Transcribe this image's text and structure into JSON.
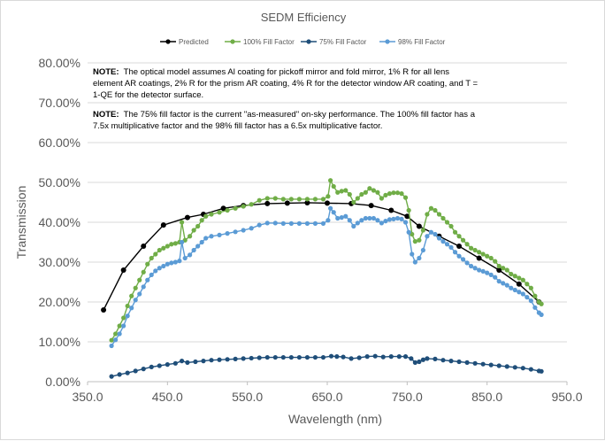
{
  "chart_data": {
    "type": "line",
    "title": "SEDM Efficiency",
    "xlabel": "Wavelength (nm)",
    "ylabel": "Transmission",
    "xlim": [
      350,
      950
    ],
    "ylim": [
      0,
      0.8
    ],
    "x_ticks": [
      "350.0",
      "450.0",
      "550.0",
      "650.0",
      "750.0",
      "850.0",
      "950.0"
    ],
    "y_ticks": [
      "0.00%",
      "10.00%",
      "20.00%",
      "30.00%",
      "40.00%",
      "50.00%",
      "60.00%",
      "70.00%",
      "80.00%"
    ],
    "legend_position": "top",
    "notes": [
      {
        "label": "NOTE:",
        "text": "The optical model assumes Al coating for pickoff mirror and fold mirror, 1% R for all lens element AR coatings, 2% R for the prism AR coating, 4% R for the detector window AR coating, and T = 1-QE for the detector surface."
      },
      {
        "label": "NOTE:",
        "text": "The 75% fill factor is the current \"as-measured\" on-sky performance.  The 100% fill factor has a 7.5x multiplicative factor and the 98% fill factor has a 6.5x multiplicative factor."
      }
    ],
    "series": [
      {
        "name": "Predicted",
        "color": "#000000",
        "marker": "#000000",
        "stride": 1,
        "points": [
          [
            370,
            0.18
          ],
          [
            395,
            0.28
          ],
          [
            420,
            0.34
          ],
          [
            445,
            0.393
          ],
          [
            475,
            0.412
          ],
          [
            495,
            0.42
          ],
          [
            520,
            0.435
          ],
          [
            545,
            0.442
          ],
          [
            575,
            0.447
          ],
          [
            600,
            0.448
          ],
          [
            625,
            0.449
          ],
          [
            650,
            0.448
          ],
          [
            680,
            0.447
          ],
          [
            705,
            0.442
          ],
          [
            730,
            0.43
          ],
          [
            750,
            0.415
          ],
          [
            765,
            0.39
          ],
          [
            790,
            0.365
          ],
          [
            815,
            0.34
          ],
          [
            840,
            0.31
          ],
          [
            865,
            0.28
          ],
          [
            890,
            0.245
          ],
          [
            915,
            0.2
          ]
        ]
      },
      {
        "name": "100% Fill Factor",
        "color": "#70ad47",
        "marker": "#70ad47",
        "stride": 1,
        "points": [
          [
            380,
            0.104
          ],
          [
            385,
            0.12
          ],
          [
            390,
            0.14
          ],
          [
            395,
            0.16
          ],
          [
            400,
            0.19
          ],
          [
            405,
            0.215
          ],
          [
            410,
            0.235
          ],
          [
            415,
            0.255
          ],
          [
            420,
            0.275
          ],
          [
            425,
            0.295
          ],
          [
            430,
            0.31
          ],
          [
            435,
            0.32
          ],
          [
            440,
            0.33
          ],
          [
            445,
            0.335
          ],
          [
            450,
            0.34
          ],
          [
            455,
            0.345
          ],
          [
            460,
            0.347
          ],
          [
            465,
            0.35
          ],
          [
            468,
            0.4
          ],
          [
            472,
            0.355
          ],
          [
            478,
            0.365
          ],
          [
            483,
            0.38
          ],
          [
            488,
            0.39
          ],
          [
            493,
            0.405
          ],
          [
            498,
            0.415
          ],
          [
            505,
            0.42
          ],
          [
            515,
            0.425
          ],
          [
            525,
            0.43
          ],
          [
            535,
            0.435
          ],
          [
            545,
            0.44
          ],
          [
            555,
            0.445
          ],
          [
            565,
            0.455
          ],
          [
            575,
            0.46
          ],
          [
            585,
            0.46
          ],
          [
            595,
            0.458
          ],
          [
            605,
            0.458
          ],
          [
            615,
            0.458
          ],
          [
            625,
            0.458
          ],
          [
            635,
            0.458
          ],
          [
            645,
            0.458
          ],
          [
            651,
            0.465
          ],
          [
            654,
            0.505
          ],
          [
            658,
            0.49
          ],
          [
            663,
            0.475
          ],
          [
            668,
            0.478
          ],
          [
            673,
            0.48
          ],
          [
            678,
            0.47
          ],
          [
            683,
            0.45
          ],
          [
            688,
            0.46
          ],
          [
            693,
            0.47
          ],
          [
            698,
            0.475
          ],
          [
            703,
            0.485
          ],
          [
            708,
            0.48
          ],
          [
            713,
            0.475
          ],
          [
            718,
            0.46
          ],
          [
            723,
            0.468
          ],
          [
            728,
            0.472
          ],
          [
            733,
            0.474
          ],
          [
            738,
            0.474
          ],
          [
            743,
            0.472
          ],
          [
            748,
            0.462
          ],
          [
            752,
            0.43
          ],
          [
            756,
            0.37
          ],
          [
            760,
            0.352
          ],
          [
            765,
            0.355
          ],
          [
            770,
            0.38
          ],
          [
            775,
            0.42
          ],
          [
            780,
            0.435
          ],
          [
            785,
            0.43
          ],
          [
            790,
            0.42
          ],
          [
            795,
            0.41
          ],
          [
            800,
            0.4
          ],
          [
            805,
            0.39
          ],
          [
            810,
            0.375
          ],
          [
            815,
            0.365
          ],
          [
            820,
            0.355
          ],
          [
            825,
            0.345
          ],
          [
            830,
            0.335
          ],
          [
            835,
            0.33
          ],
          [
            840,
            0.325
          ],
          [
            845,
            0.32
          ],
          [
            850,
            0.315
          ],
          [
            855,
            0.31
          ],
          [
            860,
            0.302
          ],
          [
            865,
            0.29
          ],
          [
            870,
            0.285
          ],
          [
            875,
            0.28
          ],
          [
            880,
            0.27
          ],
          [
            885,
            0.265
          ],
          [
            890,
            0.26
          ],
          [
            895,
            0.255
          ],
          [
            900,
            0.245
          ],
          [
            905,
            0.235
          ],
          [
            910,
            0.215
          ],
          [
            915,
            0.2
          ],
          [
            918,
            0.195
          ]
        ]
      },
      {
        "name": "75% Fill Factor",
        "color": "#1f4e79",
        "marker": "#1f4e79",
        "stride": 1,
        "points": [
          [
            380,
            0.013
          ],
          [
            390,
            0.018
          ],
          [
            400,
            0.022
          ],
          [
            410,
            0.027
          ],
          [
            420,
            0.032
          ],
          [
            430,
            0.037
          ],
          [
            440,
            0.04
          ],
          [
            450,
            0.043
          ],
          [
            460,
            0.046
          ],
          [
            468,
            0.052
          ],
          [
            475,
            0.048
          ],
          [
            485,
            0.05
          ],
          [
            495,
            0.052
          ],
          [
            505,
            0.054
          ],
          [
            515,
            0.055
          ],
          [
            525,
            0.056
          ],
          [
            535,
            0.057
          ],
          [
            545,
            0.058
          ],
          [
            555,
            0.059
          ],
          [
            565,
            0.06
          ],
          [
            575,
            0.061
          ],
          [
            585,
            0.061
          ],
          [
            595,
            0.061
          ],
          [
            605,
            0.061
          ],
          [
            615,
            0.061
          ],
          [
            625,
            0.061
          ],
          [
            635,
            0.061
          ],
          [
            645,
            0.061
          ],
          [
            655,
            0.064
          ],
          [
            662,
            0.063
          ],
          [
            670,
            0.062
          ],
          [
            680,
            0.058
          ],
          [
            690,
            0.06
          ],
          [
            700,
            0.063
          ],
          [
            710,
            0.064
          ],
          [
            720,
            0.062
          ],
          [
            730,
            0.063
          ],
          [
            740,
            0.063
          ],
          [
            748,
            0.063
          ],
          [
            755,
            0.058
          ],
          [
            760,
            0.048
          ],
          [
            765,
            0.05
          ],
          [
            770,
            0.055
          ],
          [
            775,
            0.058
          ],
          [
            785,
            0.057
          ],
          [
            795,
            0.054
          ],
          [
            805,
            0.052
          ],
          [
            815,
            0.05
          ],
          [
            825,
            0.048
          ],
          [
            835,
            0.046
          ],
          [
            845,
            0.044
          ],
          [
            855,
            0.042
          ],
          [
            865,
            0.04
          ],
          [
            875,
            0.038
          ],
          [
            885,
            0.036
          ],
          [
            895,
            0.034
          ],
          [
            905,
            0.031
          ],
          [
            915,
            0.027
          ],
          [
            918,
            0.026
          ]
        ]
      },
      {
        "name": "98% Fill Factor",
        "color": "#5b9bd5",
        "marker": "#5b9bd5",
        "stride": 1,
        "points": [
          [
            380,
            0.09
          ],
          [
            385,
            0.105
          ],
          [
            390,
            0.12
          ],
          [
            395,
            0.14
          ],
          [
            400,
            0.165
          ],
          [
            405,
            0.185
          ],
          [
            410,
            0.205
          ],
          [
            415,
            0.22
          ],
          [
            420,
            0.238
          ],
          [
            425,
            0.255
          ],
          [
            430,
            0.268
          ],
          [
            435,
            0.278
          ],
          [
            440,
            0.285
          ],
          [
            445,
            0.29
          ],
          [
            450,
            0.295
          ],
          [
            455,
            0.298
          ],
          [
            460,
            0.3
          ],
          [
            465,
            0.303
          ],
          [
            468,
            0.35
          ],
          [
            472,
            0.31
          ],
          [
            478,
            0.318
          ],
          [
            483,
            0.33
          ],
          [
            488,
            0.34
          ],
          [
            493,
            0.35
          ],
          [
            498,
            0.36
          ],
          [
            505,
            0.365
          ],
          [
            515,
            0.368
          ],
          [
            525,
            0.372
          ],
          [
            535,
            0.376
          ],
          [
            545,
            0.38
          ],
          [
            555,
            0.385
          ],
          [
            565,
            0.393
          ],
          [
            575,
            0.398
          ],
          [
            585,
            0.398
          ],
          [
            595,
            0.397
          ],
          [
            605,
            0.397
          ],
          [
            615,
            0.397
          ],
          [
            625,
            0.397
          ],
          [
            635,
            0.397
          ],
          [
            645,
            0.397
          ],
          [
            651,
            0.405
          ],
          [
            654,
            0.435
          ],
          [
            658,
            0.425
          ],
          [
            663,
            0.41
          ],
          [
            668,
            0.412
          ],
          [
            673,
            0.415
          ],
          [
            678,
            0.405
          ],
          [
            683,
            0.39
          ],
          [
            688,
            0.398
          ],
          [
            693,
            0.405
          ],
          [
            698,
            0.41
          ],
          [
            703,
            0.41
          ],
          [
            708,
            0.41
          ],
          [
            713,
            0.405
          ],
          [
            718,
            0.398
          ],
          [
            723,
            0.403
          ],
          [
            728,
            0.407
          ],
          [
            733,
            0.408
          ],
          [
            738,
            0.41
          ],
          [
            743,
            0.408
          ],
          [
            748,
            0.4
          ],
          [
            752,
            0.375
          ],
          [
            756,
            0.32
          ],
          [
            760,
            0.3
          ],
          [
            765,
            0.31
          ],
          [
            770,
            0.33
          ],
          [
            775,
            0.365
          ],
          [
            780,
            0.375
          ],
          [
            785,
            0.37
          ],
          [
            790,
            0.36
          ],
          [
            795,
            0.352
          ],
          [
            800,
            0.345
          ],
          [
            805,
            0.337
          ],
          [
            810,
            0.325
          ],
          [
            815,
            0.315
          ],
          [
            820,
            0.307
          ],
          [
            825,
            0.298
          ],
          [
            830,
            0.29
          ],
          [
            835,
            0.285
          ],
          [
            840,
            0.28
          ],
          [
            845,
            0.277
          ],
          [
            850,
            0.273
          ],
          [
            855,
            0.268
          ],
          [
            860,
            0.262
          ],
          [
            865,
            0.252
          ],
          [
            870,
            0.247
          ],
          [
            875,
            0.242
          ],
          [
            880,
            0.235
          ],
          [
            885,
            0.23
          ],
          [
            890,
            0.225
          ],
          [
            895,
            0.22
          ],
          [
            900,
            0.212
          ],
          [
            905,
            0.203
          ],
          [
            910,
            0.186
          ],
          [
            915,
            0.173
          ],
          [
            918,
            0.168
          ]
        ]
      }
    ]
  }
}
